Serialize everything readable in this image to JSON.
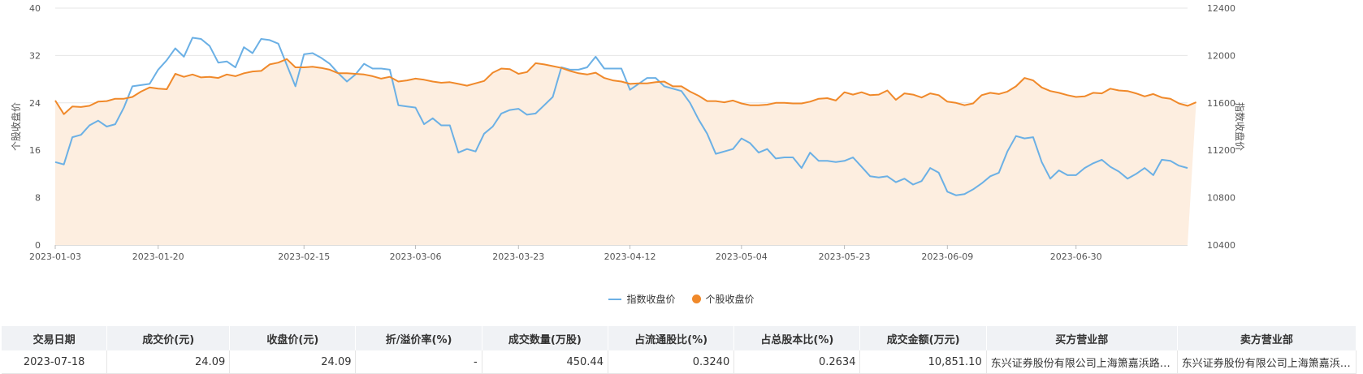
{
  "chart_data": {
    "type": "line",
    "left_axis": {
      "label": "个股收盘价",
      "min": 0,
      "max": 40,
      "ticks": [
        0,
        8,
        16,
        24,
        32,
        40
      ]
    },
    "right_axis": {
      "label": "指数收盘价",
      "min": 10400,
      "max": 12400,
      "ticks": [
        10400,
        10800,
        11200,
        11600,
        12000,
        12400
      ]
    },
    "x_tick_labels": [
      "2023-01-03",
      "2023-01-20",
      "2023-02-15",
      "2023-03-06",
      "2023-03-23",
      "2023-04-12",
      "2023-05-04",
      "2023-05-23",
      "2023-06-09",
      "2023-06-30"
    ],
    "x_tick_indices": [
      0,
      12,
      29,
      42,
      54,
      67,
      80,
      92,
      104,
      119
    ],
    "series": [
      {
        "name": "指数收盘价",
        "axis": "right",
        "color": "#6bb0e5",
        "values": [
          11100,
          11080,
          11310,
          11330,
          11410,
          11450,
          11400,
          11420,
          11560,
          11740,
          11750,
          11760,
          11880,
          11960,
          12060,
          11990,
          12150,
          12140,
          12080,
          11940,
          11950,
          11900,
          12070,
          12020,
          12140,
          12130,
          12100,
          11920,
          11740,
          12010,
          12020,
          11980,
          11930,
          11850,
          11780,
          11840,
          11930,
          11890,
          11890,
          11880,
          11580,
          11570,
          11560,
          11420,
          11470,
          11410,
          11410,
          11180,
          11210,
          11190,
          11340,
          11400,
          11510,
          11540,
          11550,
          11500,
          11510,
          11580,
          11650,
          11900,
          11880,
          11880,
          11900,
          11990,
          11890,
          11890,
          11890,
          11710,
          11760,
          11810,
          11810,
          11740,
          11720,
          11700,
          11600,
          11460,
          11340,
          11170,
          11190,
          11210,
          11300,
          11260,
          11180,
          11210,
          11130,
          11140,
          11140,
          11050,
          11180,
          11110,
          11110,
          11100,
          11110,
          11140,
          11060,
          10980,
          10970,
          10980,
          10930,
          10960,
          10910,
          10940,
          11050,
          11010,
          10850,
          10820,
          10830,
          10870,
          10920,
          10980,
          11010,
          11190,
          11320,
          11300,
          11310,
          11100,
          10960,
          11030,
          10990,
          10990,
          11050,
          11090,
          11120,
          11060,
          11020,
          10960,
          11000,
          11050,
          10990,
          11120,
          11110,
          11070,
          11050
        ]
      },
      {
        "name": "个股收盘价",
        "axis": "left",
        "color": "#f0892a",
        "fill": "#fdeee0",
        "values": [
          24.4,
          22.1,
          23.4,
          23.3,
          23.5,
          24.2,
          24.3,
          24.7,
          24.7,
          25.0,
          25.9,
          26.6,
          26.4,
          26.3,
          28.9,
          28.4,
          28.8,
          28.3,
          28.4,
          28.2,
          28.8,
          28.5,
          29.0,
          29.3,
          29.4,
          30.5,
          30.8,
          31.4,
          30.0,
          30.0,
          30.1,
          29.9,
          29.6,
          29.0,
          29.0,
          28.9,
          28.8,
          28.5,
          28.1,
          28.4,
          27.6,
          27.8,
          28.1,
          27.9,
          27.6,
          27.4,
          27.5,
          27.2,
          26.9,
          27.3,
          27.7,
          29.1,
          29.8,
          29.7,
          28.9,
          29.2,
          30.7,
          30.5,
          30.2,
          29.9,
          29.4,
          29.0,
          28.8,
          29.1,
          28.2,
          27.8,
          27.6,
          27.2,
          27.3,
          27.3,
          27.5,
          27.6,
          26.8,
          26.8,
          25.9,
          25.2,
          24.3,
          24.3,
          24.1,
          24.4,
          23.9,
          23.6,
          23.6,
          23.7,
          24.0,
          24.0,
          23.9,
          23.9,
          24.2,
          24.7,
          24.8,
          24.4,
          25.8,
          25.4,
          25.8,
          25.3,
          25.4,
          26.1,
          24.5,
          25.6,
          25.4,
          24.9,
          25.6,
          25.3,
          24.2,
          24.0,
          23.6,
          23.9,
          25.3,
          25.7,
          25.5,
          25.9,
          26.8,
          28.2,
          27.8,
          26.6,
          26.0,
          25.7,
          25.3,
          25.0,
          25.1,
          25.7,
          25.6,
          26.4,
          26.1,
          26.0,
          25.6,
          25.1,
          25.5,
          24.9,
          24.7,
          23.9,
          23.5,
          24.1
        ]
      }
    ]
  },
  "legend": {
    "items": [
      {
        "label": "指数收盘价",
        "color": "#6bb0e5"
      },
      {
        "label": "个股收盘价",
        "color": "#f0892a"
      }
    ]
  },
  "table": {
    "headers": [
      "交易日期",
      "成交价(元)",
      "收盘价(元)",
      "折/溢价率(%)",
      "成交数量(万股)",
      "占流通股比(%)",
      "占总股本比(%)",
      "成交金额(万元)",
      "买方营业部",
      "卖方营业部"
    ],
    "rows": [
      [
        "2023-07-18",
        "24.09",
        "24.09",
        "-",
        "450.44",
        "0.3240",
        "0.2634",
        "10,851.10",
        "东兴证券股份有限公司上海箫嘉浜路证券营业部",
        "东兴证券股份有限公司上海箫嘉浜路证券营业部"
      ]
    ]
  }
}
